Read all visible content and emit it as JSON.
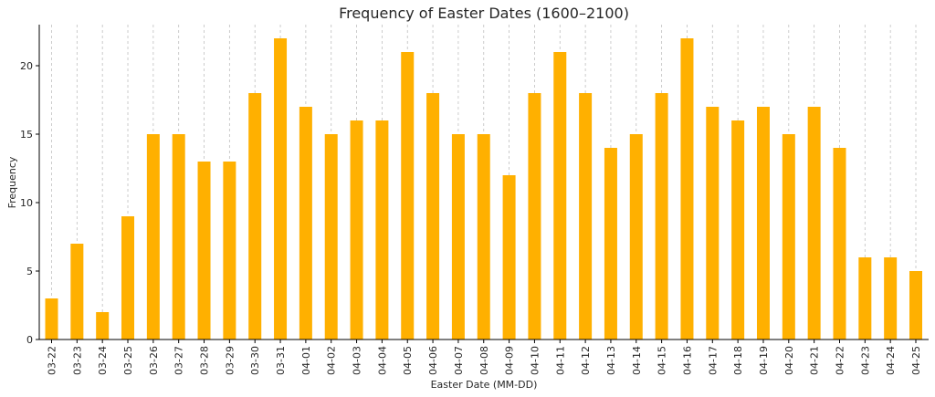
{
  "chart_data": {
    "type": "bar",
    "title": "Frequency of Easter Dates (1600–2100)",
    "xlabel": "Easter Date (MM-DD)",
    "ylabel": "Frequency",
    "ylim": [
      0,
      23
    ],
    "yticks": [
      0,
      5,
      10,
      15,
      20
    ],
    "grid": "vertical dashed",
    "bar_color": "#FFB000",
    "categories": [
      "03-22",
      "03-23",
      "03-24",
      "03-25",
      "03-26",
      "03-27",
      "03-28",
      "03-29",
      "03-30",
      "03-31",
      "04-01",
      "04-02",
      "04-03",
      "04-04",
      "04-05",
      "04-06",
      "04-07",
      "04-08",
      "04-09",
      "04-10",
      "04-11",
      "04-12",
      "04-13",
      "04-14",
      "04-15",
      "04-16",
      "04-17",
      "04-18",
      "04-19",
      "04-20",
      "04-21",
      "04-22",
      "04-23",
      "04-24",
      "04-25"
    ],
    "values": [
      3,
      7,
      2,
      9,
      15,
      15,
      13,
      13,
      18,
      22,
      17,
      15,
      16,
      16,
      21,
      18,
      15,
      15,
      12,
      18,
      21,
      18,
      14,
      15,
      18,
      22,
      17,
      16,
      17,
      15,
      17,
      14,
      6,
      6,
      5
    ]
  }
}
